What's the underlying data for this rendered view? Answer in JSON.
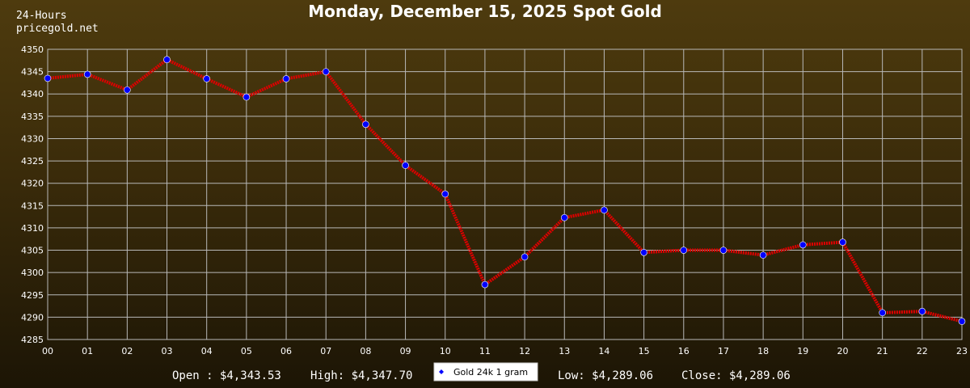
{
  "header": {
    "period": "24-Hours",
    "site": "pricegold.net"
  },
  "chart_data": {
    "type": "line",
    "title": "Monday, December 15, 2025 Spot Gold",
    "xlabel": "",
    "ylabel": "",
    "categories": [
      "00",
      "01",
      "02",
      "03",
      "04",
      "05",
      "06",
      "07",
      "08",
      "09",
      "10",
      "11",
      "12",
      "13",
      "14",
      "15",
      "16",
      "17",
      "18",
      "19",
      "20",
      "21",
      "22",
      "23"
    ],
    "series": [
      {
        "name": "Gold 24k 1 gram",
        "values": [
          4343.5,
          4344.4,
          4340.9,
          4347.7,
          4343.4,
          4339.3,
          4343.4,
          4345.0,
          4333.2,
          4324.0,
          4317.6,
          4297.3,
          4303.5,
          4312.3,
          4314.0,
          4304.5,
          4305.0,
          4305.0,
          4303.9,
          4306.2,
          4306.8,
          4291.0,
          4291.3,
          4289.06
        ]
      }
    ],
    "ylim": [
      4285,
      4350
    ],
    "yticks": [
      "4285",
      "4290",
      "4295",
      "4300",
      "4305",
      "4310",
      "4315",
      "4320",
      "4325",
      "4330",
      "4335",
      "4340",
      "4345",
      "4350"
    ],
    "grid": true,
    "legend": "bottom-center",
    "colors": {
      "line": "#dd0000",
      "marker": "#0000ff",
      "grid": "#b8b8b8"
    }
  },
  "stats": {
    "open": "Open : $4,343.53",
    "high": "High: $4,347.70",
    "low": "Low: $4,289.06",
    "close": "Close: $4,289.06"
  }
}
